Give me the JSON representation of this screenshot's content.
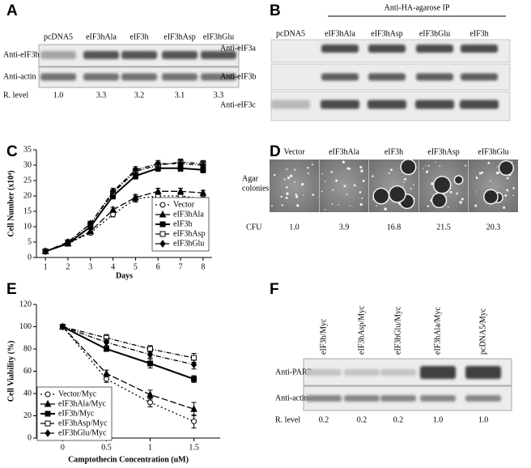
{
  "panel_a": {
    "letter": "A",
    "lanes": [
      "pcDNA5",
      "eIF3hAla",
      "eIF3h",
      "eIF3hAsp",
      "eIF3hGlu"
    ],
    "rows": [
      "Anti-eIF3h",
      "Anti-actin"
    ],
    "level_label": "R. level",
    "levels": [
      "1.0",
      "3.3",
      "3.2",
      "3.1",
      "3.3"
    ]
  },
  "panel_b": {
    "letter": "B",
    "header": "Anti-HA-agarose  IP",
    "lanes": [
      "pcDNA5",
      "eIF3hAla",
      "eIF3hAsp",
      "eIF3hGlu",
      "eIF3h"
    ],
    "rows": [
      "Anti-eIF3a",
      "Anti-eIF3b",
      "Anti-eIF3c"
    ]
  },
  "panel_d": {
    "letter": "D",
    "lanes": [
      "Vector",
      "eIF3hAla",
      "eIF3h",
      "eIF3hAsp",
      "eIF3hGlu"
    ],
    "row_label": [
      "Agar",
      "colonies"
    ],
    "cfu_label": "CFU",
    "cfu": [
      "1.0",
      "3.9",
      "16.8",
      "21.5",
      "20.3"
    ]
  },
  "panel_f": {
    "letter": "F",
    "lanes": [
      "eIF3h/Myc",
      "eIF3hAsp/Myc",
      "eIF3hGlu/Myc",
      "eIF3hAla/Myc",
      "pcDNA5/Myc"
    ],
    "rows": [
      "Anti-PARP",
      "Anti-actin"
    ],
    "level_label": "R. level",
    "levels": [
      "0.2",
      "0.2",
      "0.2",
      "1.0",
      "1.0"
    ]
  },
  "chart_data": [
    {
      "type": "line",
      "panel_label": "C",
      "x_label": "Days",
      "y_label": "Cell Number (x10⁴)",
      "x": [
        1,
        2,
        3,
        4,
        5,
        6,
        7,
        8
      ],
      "xlim": [
        0.6,
        8.4
      ],
      "xticks": [
        1,
        2,
        3,
        4,
        5,
        6,
        7,
        8
      ],
      "ylim": [
        0,
        35
      ],
      "yticks": [
        0,
        5,
        10,
        15,
        20,
        25,
        30,
        35
      ],
      "legend": "lower right",
      "series": [
        {
          "name": "Vector",
          "color": "#000000",
          "dash": "2,3",
          "marker": "circle-open",
          "values": [
            2,
            4.5,
            8,
            14,
            19,
            20,
            20,
            19
          ],
          "errors": [
            0.3,
            0.4,
            0.6,
            0.8,
            1,
            1,
            1,
            0.8
          ]
        },
        {
          "name": "eIF3hAla",
          "color": "#000000",
          "dash": "8,3",
          "marker": "triangle-filled",
          "values": [
            2,
            4.5,
            8.5,
            15.5,
            19.5,
            21.5,
            21.5,
            21
          ],
          "errors": [
            0.3,
            0.4,
            0.6,
            0.8,
            1,
            1,
            1,
            0.8
          ]
        },
        {
          "name": "eIF3h",
          "color": "#000000",
          "dash": "none",
          "marker": "square-filled",
          "values": [
            2,
            4.5,
            10,
            20,
            26.5,
            29,
            29,
            28.5
          ],
          "errors": [
            0.3,
            0.4,
            0.6,
            1,
            1,
            1,
            1,
            1
          ]
        },
        {
          "name": "eIF3hAsp",
          "color": "#000000",
          "dash": "6,2,1,2",
          "marker": "square-open",
          "values": [
            2,
            5,
            11,
            21,
            28,
            30,
            31,
            30.5
          ],
          "errors": [
            0.3,
            0.4,
            0.6,
            1,
            1,
            1,
            1,
            1
          ]
        },
        {
          "name": "eIF3hGlu",
          "color": "#000000",
          "dash": "6,2,1,2",
          "marker": "diamond-filled",
          "values": [
            2,
            5,
            11,
            21.5,
            28.5,
            30.5,
            30.5,
            30
          ],
          "errors": [
            0.3,
            0.4,
            0.6,
            1,
            1,
            1,
            1,
            1
          ]
        }
      ]
    },
    {
      "type": "line",
      "panel_label": "E",
      "x_label": "Camptothecin Concentration (uM)",
      "y_label": "Cell Viability (%)",
      "x": [
        0,
        0.5,
        1,
        1.5
      ],
      "xlim": [
        -0.3,
        1.8
      ],
      "xticks": [
        0,
        0.5,
        1,
        1.5
      ],
      "ylim": [
        0,
        120
      ],
      "yticks": [
        0,
        20,
        40,
        60,
        80,
        100,
        120
      ],
      "legend": "lower left",
      "series": [
        {
          "name": "Vector/Myc",
          "color": "#000000",
          "dash": "2,3",
          "marker": "circle-open",
          "values": [
            100,
            53,
            32,
            15
          ],
          "errors": [
            1,
            3,
            4,
            6
          ]
        },
        {
          "name": "eIF3hAla/Myc",
          "color": "#000000",
          "dash": "8,3",
          "marker": "triangle-filled",
          "values": [
            100,
            58,
            39,
            26
          ],
          "errors": [
            1,
            3,
            4,
            6
          ]
        },
        {
          "name": "eIF3h/Myc",
          "color": "#000000",
          "dash": "none",
          "marker": "square-filled",
          "values": [
            100,
            80,
            67,
            53
          ],
          "errors": [
            1,
            2,
            4,
            3
          ]
        },
        {
          "name": "eIF3hAsp/Myc",
          "color": "#000000",
          "dash": "6,2,1,2",
          "marker": "square-open",
          "values": [
            100,
            90,
            80,
            72
          ],
          "errors": [
            1,
            3,
            3,
            4
          ]
        },
        {
          "name": "eIF3hGlu/Myc",
          "color": "#000000",
          "dash": "6,2,1,2",
          "marker": "diamond-filled",
          "values": [
            100,
            86,
            75,
            66
          ],
          "errors": [
            1,
            3,
            3,
            4
          ]
        }
      ]
    }
  ]
}
